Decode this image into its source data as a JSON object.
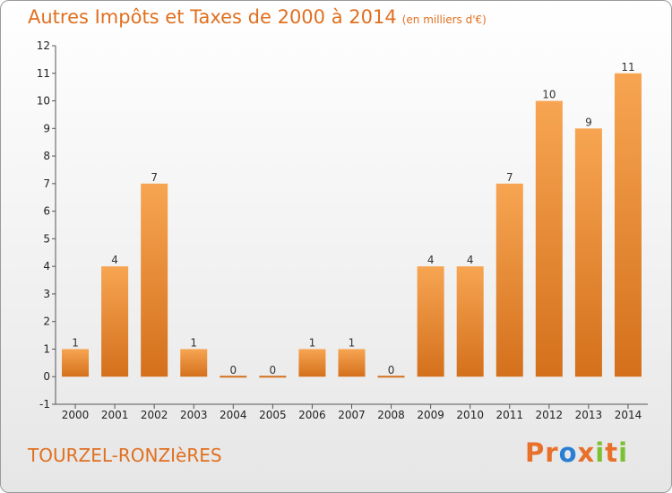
{
  "header": {
    "title": "Autres Impôts et Taxes de 2000 à 2014",
    "unit": "(en milliers d'€)"
  },
  "footer": {
    "commune": "TOURZEL-RONZIèRES",
    "logo": [
      "P",
      "r",
      "o",
      "x",
      "i",
      "t",
      "i"
    ]
  },
  "colors": {
    "title": "#e07020",
    "bar_top": "#f7a552",
    "bar_bottom": "#d4701c",
    "logo": [
      "#e8702a",
      "#e8702a",
      "#2a7fd4",
      "#e8702a",
      "#7cc033",
      "#e8702a",
      "#7cc033"
    ]
  },
  "chart_data": {
    "type": "bar",
    "title": "Autres Impôts et Taxes de 2000 à 2014",
    "categories": [
      "2000",
      "2001",
      "2002",
      "2003",
      "2004",
      "2005",
      "2006",
      "2007",
      "2008",
      "2009",
      "2010",
      "2011",
      "2012",
      "2013",
      "2014"
    ],
    "values": [
      1,
      4,
      7,
      1,
      0,
      0,
      1,
      1,
      0,
      4,
      4,
      7,
      10,
      9,
      11
    ],
    "ylim": [
      -1,
      12
    ],
    "yticks": [
      -1,
      0,
      1,
      2,
      3,
      4,
      5,
      6,
      7,
      8,
      9,
      10,
      11,
      12
    ],
    "grid": false,
    "xlabel": "",
    "ylabel": ""
  }
}
